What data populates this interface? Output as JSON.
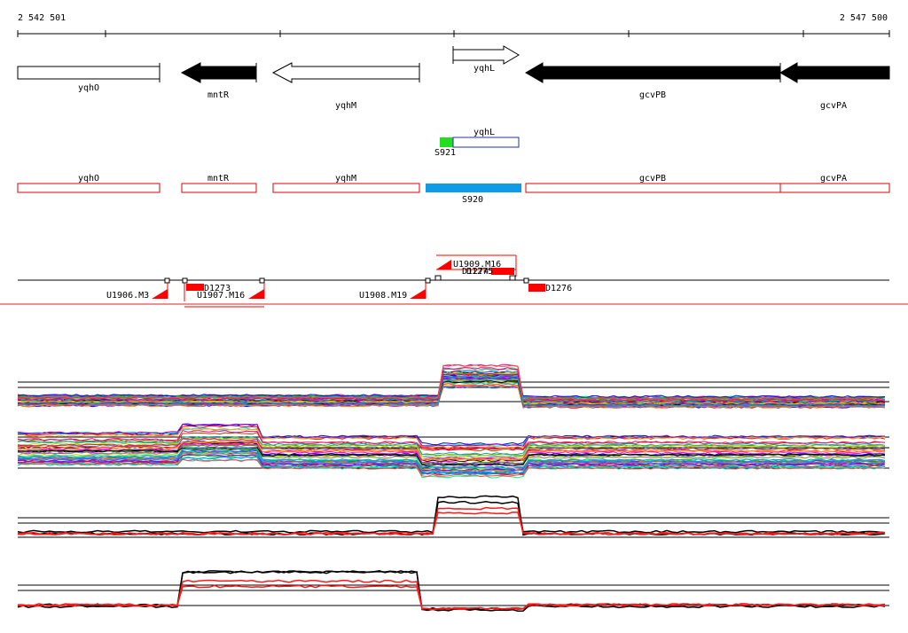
{
  "coords": {
    "start": "2 542 501",
    "end": "2 547 500"
  },
  "genes": [
    {
      "name": "yqhO",
      "dir": "+",
      "color": "#ffffff"
    },
    {
      "name": "mntR",
      "dir": "-",
      "color": "#000000"
    },
    {
      "name": "yqhM",
      "dir": "-",
      "color": "#ffffff"
    },
    {
      "name": "yqhL",
      "dir": "+",
      "color": "#ffffff"
    },
    {
      "name": "gcvPB",
      "dir": "-",
      "color": "#000000"
    },
    {
      "name": "gcvPA",
      "dir": "-",
      "color": "#000000"
    }
  ],
  "transcripts": [
    {
      "label": "S921",
      "color": "#22dd22"
    },
    {
      "label": "yqhL",
      "color": "#ffffff"
    }
  ],
  "operons": [
    {
      "label": "yqhO"
    },
    {
      "label": "mntR"
    },
    {
      "label": "yqhM"
    },
    {
      "label": "gcvPB"
    },
    {
      "label": "gcvPA"
    }
  ],
  "segment": {
    "label": "S920",
    "color": "#0f9be8"
  },
  "features": [
    {
      "label": "U1909.M16"
    },
    {
      "label": "U1906.M3"
    },
    {
      "label": "D1273"
    },
    {
      "label": "U1907.M16"
    },
    {
      "label": "U1908.M19"
    },
    {
      "label": "D1276"
    },
    {
      "label": "D1274"
    },
    {
      "label": "D1275"
    }
  ],
  "colors": {
    "gene_fill_dark": "#000000",
    "operon_outline": "#e00000",
    "feature_red": "#ff0000",
    "divider": "#dd2222",
    "profile_red": "#ff1a1a",
    "profile_black": "#000000"
  }
}
